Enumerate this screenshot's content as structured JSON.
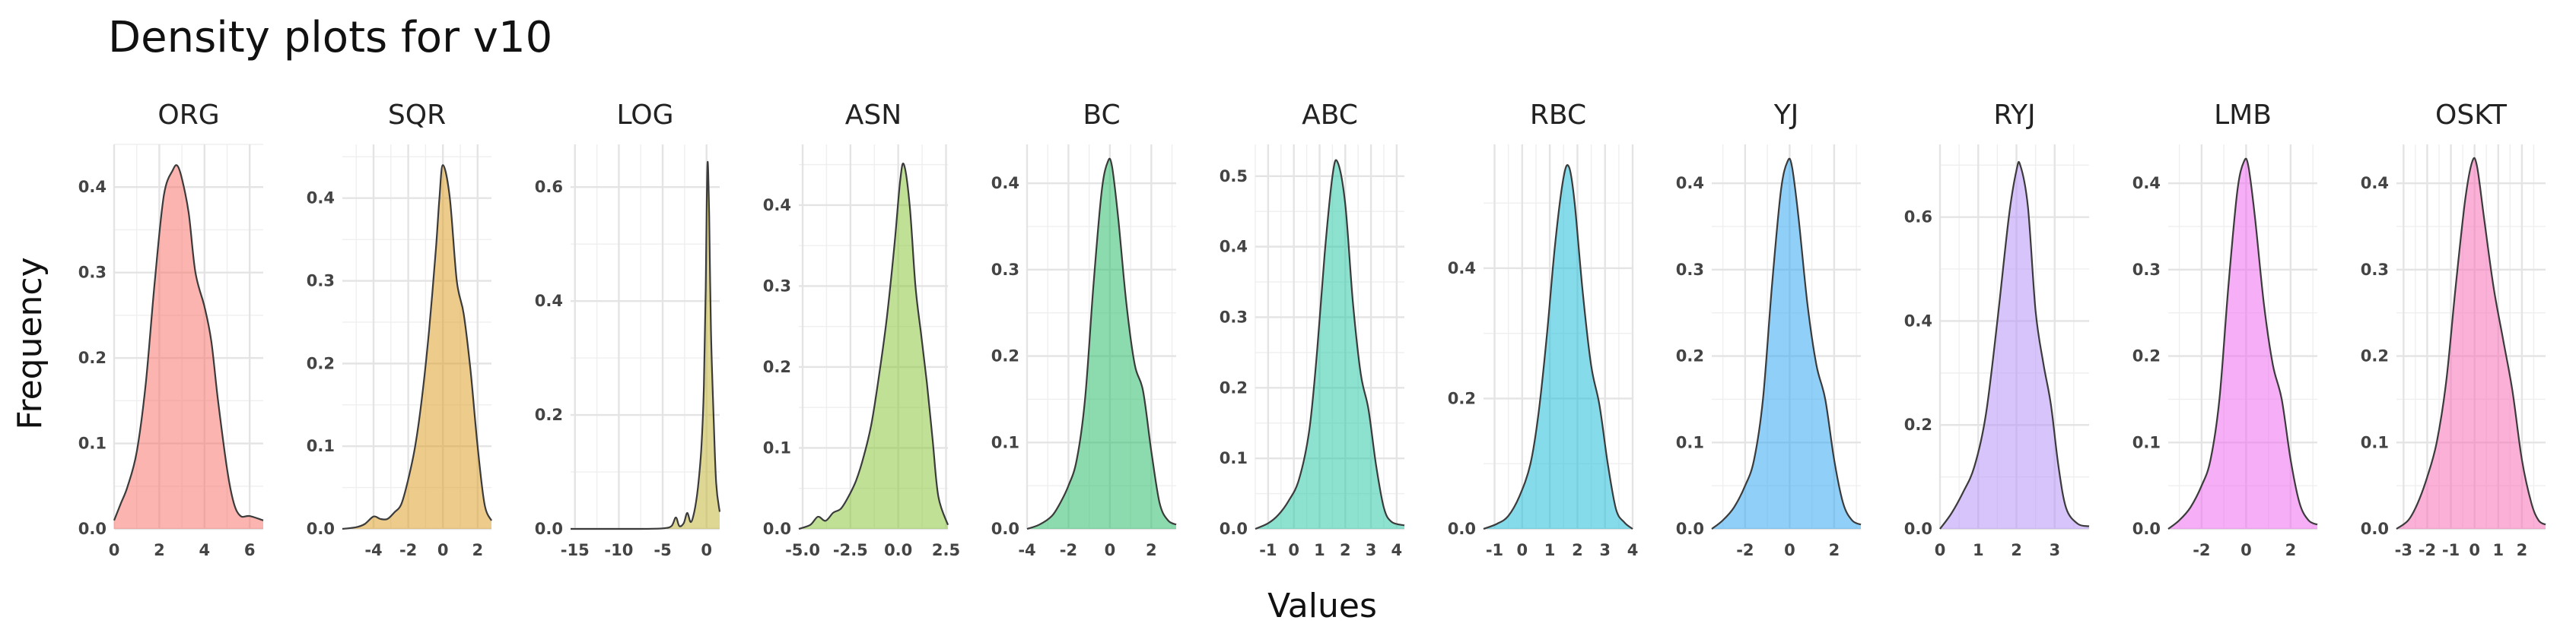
{
  "chart_data": {
    "type": "area",
    "title": "Density plots for v10",
    "xlabel": "Values",
    "ylabel": "Frequency",
    "panels": [
      {
        "name": "ORG",
        "color": "#F8766D",
        "xlim": [
          0,
          6.6
        ],
        "ylim": [
          0,
          0.45
        ],
        "xticks": [
          0,
          2,
          4,
          6
        ],
        "yticks": [
          0.0,
          0.1,
          0.2,
          0.3,
          0.4
        ],
        "xtick_labels": [
          "0",
          "2",
          "4",
          "6"
        ],
        "ytick_labels": [
          "0.0",
          "0.1",
          "0.2",
          "0.3",
          "0.4"
        ],
        "x": [
          0.0,
          0.3,
          0.6,
          1.0,
          1.4,
          1.8,
          2.2,
          2.6,
          2.8,
          3.0,
          3.3,
          3.6,
          4.0,
          4.3,
          4.6,
          5.0,
          5.3,
          5.6,
          6.0,
          6.6
        ],
        "y": [
          0.01,
          0.03,
          0.05,
          0.09,
          0.17,
          0.29,
          0.39,
          0.42,
          0.425,
          0.41,
          0.37,
          0.3,
          0.26,
          0.22,
          0.15,
          0.07,
          0.03,
          0.015,
          0.015,
          0.01
        ]
      },
      {
        "name": "SQR",
        "color": "#DEA02C",
        "xlim": [
          -5.8,
          2.8
        ],
        "ylim": [
          0,
          0.465
        ],
        "xticks": [
          -4,
          -2,
          0,
          2
        ],
        "yticks": [
          0.0,
          0.1,
          0.2,
          0.3,
          0.4
        ],
        "xtick_labels": [
          "-4",
          "-2",
          "0",
          "2"
        ],
        "ytick_labels": [
          "0.0",
          "0.1",
          "0.2",
          "0.3",
          "0.4"
        ],
        "x": [
          -5.8,
          -5.0,
          -4.5,
          -4.0,
          -3.6,
          -3.2,
          -2.8,
          -2.4,
          -2.0,
          -1.6,
          -1.2,
          -0.8,
          -0.4,
          -0.2,
          0.0,
          0.4,
          0.8,
          1.2,
          1.6,
          2.0,
          2.4,
          2.8
        ],
        "y": [
          0.0,
          0.002,
          0.006,
          0.015,
          0.012,
          0.012,
          0.02,
          0.03,
          0.06,
          0.1,
          0.16,
          0.24,
          0.34,
          0.4,
          0.44,
          0.4,
          0.3,
          0.26,
          0.19,
          0.1,
          0.03,
          0.01
        ]
      },
      {
        "name": "LOG",
        "color": "#C2B63A",
        "xlim": [
          -15.5,
          1.5
        ],
        "ylim": [
          0,
          0.675
        ],
        "xticks": [
          -15,
          -10,
          -5,
          0
        ],
        "yticks": [
          0.0,
          0.2,
          0.4,
          0.6
        ],
        "xtick_labels": [
          "-15",
          "-10",
          "-5",
          "0"
        ],
        "ytick_labels": [
          "0.0",
          "0.2",
          "0.4",
          "0.6"
        ],
        "x": [
          -15.5,
          -12.0,
          -8.0,
          -5.0,
          -4.0,
          -3.5,
          -3.1,
          -2.6,
          -2.2,
          -1.8,
          -1.4,
          -1.0,
          -0.6,
          -0.3,
          -0.1,
          0.1,
          0.3,
          0.5,
          0.8,
          1.1,
          1.5
        ],
        "y": [
          0.0,
          0.0,
          0.0,
          0.001,
          0.005,
          0.02,
          0.005,
          0.01,
          0.028,
          0.012,
          0.03,
          0.07,
          0.14,
          0.25,
          0.42,
          0.64,
          0.55,
          0.35,
          0.2,
          0.08,
          0.03
        ]
      },
      {
        "name": "ASN",
        "color": "#8CC63F",
        "xlim": [
          -5.2,
          2.6
        ],
        "ylim": [
          0,
          0.475
        ],
        "xticks": [
          -5.0,
          -2.5,
          0.0,
          2.5
        ],
        "yticks": [
          0.0,
          0.1,
          0.2,
          0.3,
          0.4
        ],
        "xtick_labels": [
          "-5.0",
          "-2.5",
          "0.0",
          "2.5"
        ],
        "ytick_labels": [
          "0.0",
          "0.1",
          "0.2",
          "0.3",
          "0.4"
        ],
        "x": [
          -5.2,
          -4.6,
          -4.2,
          -3.8,
          -3.4,
          -3.0,
          -2.6,
          -2.2,
          -1.8,
          -1.4,
          -1.0,
          -0.6,
          -0.2,
          0.1,
          0.3,
          0.6,
          0.9,
          1.2,
          1.5,
          1.8,
          2.1,
          2.6
        ],
        "y": [
          0.0,
          0.005,
          0.015,
          0.01,
          0.02,
          0.025,
          0.04,
          0.06,
          0.09,
          0.13,
          0.19,
          0.26,
          0.35,
          0.43,
          0.45,
          0.4,
          0.3,
          0.24,
          0.18,
          0.11,
          0.04,
          0.005
        ]
      },
      {
        "name": "BC",
        "color": "#2EBD6B",
        "xlim": [
          -4.0,
          3.2
        ],
        "ylim": [
          0,
          0.445
        ],
        "xticks": [
          -4,
          -2,
          0,
          2
        ],
        "yticks": [
          0.0,
          0.1,
          0.2,
          0.3,
          0.4
        ],
        "xtick_labels": [
          "-4",
          "-2",
          "0",
          "2"
        ],
        "ytick_labels": [
          "0.0",
          "0.1",
          "0.2",
          "0.3",
          "0.4"
        ],
        "x": [
          -4.0,
          -3.4,
          -2.8,
          -2.4,
          -2.0,
          -1.6,
          -1.2,
          -0.8,
          -0.4,
          -0.1,
          0.1,
          0.4,
          0.8,
          1.2,
          1.6,
          2.0,
          2.4,
          2.8,
          3.2
        ],
        "y": [
          0.0,
          0.005,
          0.015,
          0.03,
          0.05,
          0.08,
          0.15,
          0.28,
          0.39,
          0.425,
          0.42,
          0.36,
          0.26,
          0.19,
          0.16,
          0.09,
          0.03,
          0.01,
          0.005
        ]
      },
      {
        "name": "ABC",
        "color": "#2DC9A8",
        "xlim": [
          -1.5,
          4.3
        ],
        "ylim": [
          0,
          0.545
        ],
        "xticks": [
          -1,
          0,
          1,
          2,
          3,
          4
        ],
        "yticks": [
          0.0,
          0.1,
          0.2,
          0.3,
          0.4,
          0.5
        ],
        "xtick_labels": [
          "-1",
          "0",
          "1",
          "2",
          "3",
          "4"
        ],
        "ytick_labels": [
          "0.0",
          "0.1",
          "0.2",
          "0.3",
          "0.4",
          "0.5"
        ],
        "x": [
          -1.5,
          -1.0,
          -0.6,
          -0.2,
          0.2,
          0.6,
          0.9,
          1.2,
          1.5,
          1.7,
          2.0,
          2.3,
          2.6,
          2.9,
          3.2,
          3.5,
          3.8,
          4.3
        ],
        "y": [
          0.0,
          0.008,
          0.02,
          0.04,
          0.07,
          0.14,
          0.25,
          0.39,
          0.5,
          0.52,
          0.46,
          0.32,
          0.22,
          0.17,
          0.09,
          0.03,
          0.01,
          0.005
        ]
      },
      {
        "name": "RBC",
        "color": "#20BDD8",
        "xlim": [
          -1.4,
          4.0
        ],
        "ylim": [
          0,
          0.59
        ],
        "xticks": [
          -1,
          0,
          1,
          2,
          3,
          4
        ],
        "yticks": [
          0.0,
          0.2,
          0.4
        ],
        "xtick_labels": [
          "-1",
          "0",
          "1",
          "2",
          "3",
          "4"
        ],
        "ytick_labels": [
          "0.0",
          "0.2",
          "0.4"
        ],
        "x": [
          -1.4,
          -0.9,
          -0.5,
          -0.1,
          0.3,
          0.6,
          0.9,
          1.2,
          1.5,
          1.7,
          1.9,
          2.2,
          2.5,
          2.8,
          3.1,
          3.4,
          3.7,
          4.0
        ],
        "y": [
          0.0,
          0.008,
          0.02,
          0.05,
          0.1,
          0.18,
          0.3,
          0.44,
          0.54,
          0.555,
          0.5,
          0.36,
          0.25,
          0.19,
          0.1,
          0.03,
          0.01,
          0.0
        ]
      },
      {
        "name": "YJ",
        "color": "#35AAF2",
        "xlim": [
          -3.5,
          3.2
        ],
        "ylim": [
          0,
          0.445
        ],
        "xticks": [
          -2,
          0,
          2
        ],
        "yticks": [
          0.0,
          0.1,
          0.2,
          0.3,
          0.4
        ],
        "xtick_labels": [
          "-2",
          "0",
          "2"
        ],
        "ytick_labels": [
          "0.0",
          "0.1",
          "0.2",
          "0.3",
          "0.4"
        ],
        "x": [
          -3.5,
          -3.0,
          -2.5,
          -2.0,
          -1.6,
          -1.2,
          -0.8,
          -0.4,
          -0.1,
          0.1,
          0.4,
          0.8,
          1.2,
          1.6,
          2.0,
          2.4,
          2.8,
          3.2
        ],
        "y": [
          0.0,
          0.01,
          0.025,
          0.05,
          0.08,
          0.15,
          0.28,
          0.39,
          0.425,
          0.42,
          0.36,
          0.26,
          0.19,
          0.15,
          0.08,
          0.03,
          0.01,
          0.005
        ]
      },
      {
        "name": "RYJ",
        "color": "#B794F6",
        "xlim": [
          0,
          3.9
        ],
        "ylim": [
          0,
          0.74
        ],
        "xticks": [
          0,
          1,
          2,
          3
        ],
        "yticks": [
          0.0,
          0.2,
          0.4,
          0.6
        ],
        "xtick_labels": [
          "0",
          "1",
          "2",
          "3"
        ],
        "ytick_labels": [
          "0.0",
          "0.2",
          "0.4",
          "0.6"
        ],
        "x": [
          0.0,
          0.3,
          0.6,
          0.9,
          1.2,
          1.5,
          1.8,
          2.0,
          2.1,
          2.3,
          2.5,
          2.7,
          2.9,
          3.1,
          3.3,
          3.6,
          3.9
        ],
        "y": [
          0.0,
          0.03,
          0.07,
          0.12,
          0.22,
          0.4,
          0.6,
          0.69,
          0.7,
          0.62,
          0.42,
          0.32,
          0.24,
          0.12,
          0.04,
          0.01,
          0.005
        ]
      },
      {
        "name": "LMB",
        "color": "#EE6CF0",
        "xlim": [
          -3.5,
          3.2
        ],
        "ylim": [
          0,
          0.445
        ],
        "xticks": [
          -2,
          0,
          2
        ],
        "yticks": [
          0.0,
          0.1,
          0.2,
          0.3,
          0.4
        ],
        "xtick_labels": [
          "-2",
          "0",
          "2"
        ],
        "ytick_labels": [
          "0.0",
          "0.1",
          "0.2",
          "0.3",
          "0.4"
        ],
        "x": [
          -3.5,
          -3.0,
          -2.5,
          -2.0,
          -1.6,
          -1.2,
          -0.8,
          -0.4,
          -0.1,
          0.1,
          0.4,
          0.8,
          1.2,
          1.6,
          2.0,
          2.4,
          2.8,
          3.2
        ],
        "y": [
          0.0,
          0.01,
          0.025,
          0.05,
          0.08,
          0.15,
          0.28,
          0.39,
          0.425,
          0.42,
          0.36,
          0.26,
          0.19,
          0.15,
          0.08,
          0.03,
          0.01,
          0.005
        ]
      },
      {
        "name": "OSKT",
        "color": "#F770B8",
        "xlim": [
          -3.3,
          3.0
        ],
        "ylim": [
          0,
          0.445
        ],
        "xticks": [
          -3,
          -2,
          -1,
          0,
          1,
          2
        ],
        "yticks": [
          0.0,
          0.1,
          0.2,
          0.3,
          0.4
        ],
        "xtick_labels": [
          "-3",
          "-2",
          "-1",
          "0",
          "1",
          "2"
        ],
        "ytick_labels": [
          "0.0",
          "0.1",
          "0.2",
          "0.3",
          "0.4"
        ],
        "x": [
          -3.3,
          -2.8,
          -2.4,
          -2.0,
          -1.6,
          -1.2,
          -0.8,
          -0.4,
          -0.1,
          0.1,
          0.4,
          0.8,
          1.2,
          1.6,
          2.0,
          2.4,
          2.7,
          3.0
        ],
        "y": [
          0.0,
          0.01,
          0.03,
          0.06,
          0.1,
          0.17,
          0.28,
          0.38,
          0.425,
          0.42,
          0.36,
          0.28,
          0.22,
          0.16,
          0.08,
          0.03,
          0.01,
          0.005
        ]
      }
    ]
  }
}
